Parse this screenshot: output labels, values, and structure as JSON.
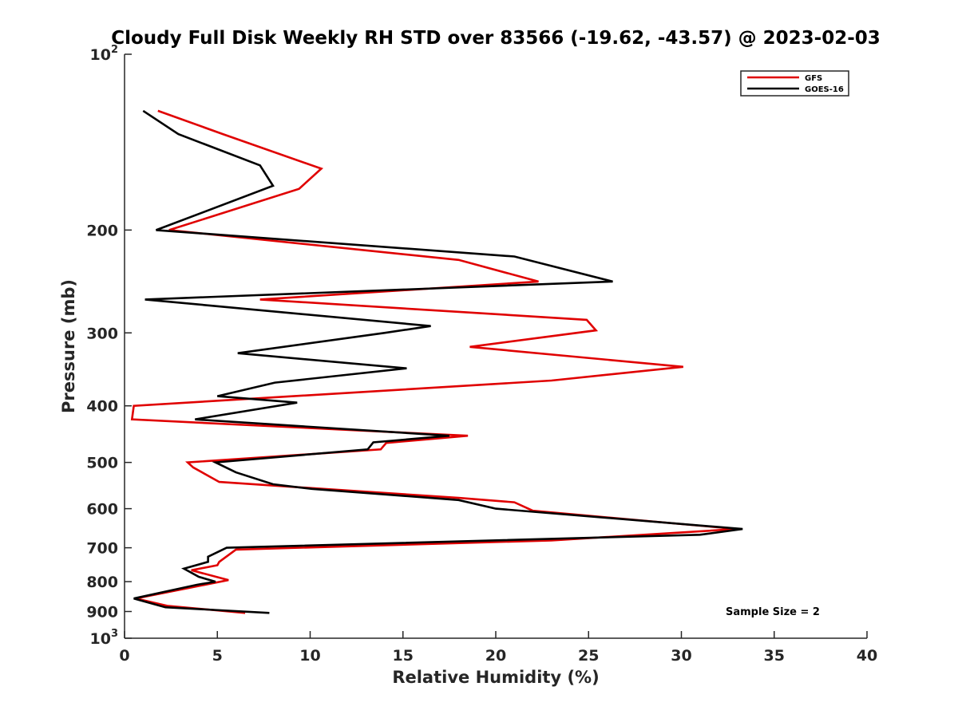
{
  "chart_data": {
    "type": "line",
    "title": "Cloudy Full Disk Weekly RH STD over 83566 (-19.62, -43.57) @ 2023-02-03",
    "xlabel": "Relative Humidity (%)",
    "ylabel": "Pressure (mb)",
    "xlim": [
      0,
      40
    ],
    "ylim": [
      100,
      1000
    ],
    "y_scale": "log",
    "y_reversed": true,
    "grid": false,
    "legend_position": "top-right",
    "x_ticks": [
      "0",
      "5",
      "10",
      "15",
      "20",
      "25",
      "30",
      "35",
      "40"
    ],
    "y_ticks": [
      {
        "value": 100,
        "base": "10",
        "exp": "2"
      },
      {
        "value": 200,
        "label": "200"
      },
      {
        "value": 300,
        "label": "300"
      },
      {
        "value": 400,
        "label": "400"
      },
      {
        "value": 500,
        "label": "500"
      },
      {
        "value": 600,
        "label": "600"
      },
      {
        "value": 700,
        "label": "700"
      },
      {
        "value": 800,
        "label": "800"
      },
      {
        "value": 900,
        "label": "900"
      },
      {
        "value": 1000,
        "base": "10",
        "exp": "3"
      }
    ],
    "annotation": "Sample Size = 2",
    "series": [
      {
        "name": "GFS",
        "color": "#e00000",
        "points": [
          [
            1.8,
            125
          ],
          [
            5.3,
            137
          ],
          [
            10.6,
            157
          ],
          [
            9.4,
            170
          ],
          [
            2.4,
            200
          ],
          [
            18.0,
            225
          ],
          [
            22.3,
            245
          ],
          [
            7.3,
            263
          ],
          [
            24.9,
            285
          ],
          [
            25.4,
            297
          ],
          [
            18.6,
            317
          ],
          [
            30.1,
            343
          ],
          [
            23.0,
            362
          ],
          [
            0.5,
            400
          ],
          [
            0.4,
            422
          ],
          [
            18.5,
            450
          ],
          [
            14.1,
            463
          ],
          [
            13.8,
            475
          ],
          [
            3.4,
            500
          ],
          [
            3.7,
            510
          ],
          [
            5.1,
            540
          ],
          [
            18.0,
            575
          ],
          [
            21.0,
            585
          ],
          [
            22.0,
            605
          ],
          [
            33.0,
            650
          ],
          [
            23.0,
            680
          ],
          [
            6.0,
            705
          ],
          [
            5.1,
            740
          ],
          [
            5.0,
            750
          ],
          [
            3.6,
            765
          ],
          [
            5.6,
            795
          ],
          [
            0.6,
            855
          ],
          [
            2.3,
            880
          ],
          [
            6.5,
            905
          ]
        ]
      },
      {
        "name": "GOES-16",
        "color": "#000000",
        "points": [
          [
            1.0,
            125
          ],
          [
            2.9,
            137
          ],
          [
            7.3,
            155
          ],
          [
            8.0,
            168
          ],
          [
            1.7,
            200
          ],
          [
            21.0,
            222
          ],
          [
            26.3,
            245
          ],
          [
            1.1,
            263
          ],
          [
            16.5,
            292
          ],
          [
            14.0,
            300
          ],
          [
            6.1,
            325
          ],
          [
            15.2,
            345
          ],
          [
            8.1,
            365
          ],
          [
            5.0,
            385
          ],
          [
            9.3,
            395
          ],
          [
            3.8,
            422
          ],
          [
            17.5,
            450
          ],
          [
            13.4,
            462
          ],
          [
            13.1,
            475
          ],
          [
            4.9,
            500
          ],
          [
            6.0,
            520
          ],
          [
            8.0,
            545
          ],
          [
            10.1,
            555
          ],
          [
            18.0,
            580
          ],
          [
            20.0,
            600
          ],
          [
            33.3,
            650
          ],
          [
            31.0,
            665
          ],
          [
            5.5,
            700
          ],
          [
            4.5,
            725
          ],
          [
            4.5,
            740
          ],
          [
            3.2,
            760
          ],
          [
            4.0,
            785
          ],
          [
            4.9,
            800
          ],
          [
            3.9,
            810
          ],
          [
            0.5,
            855
          ],
          [
            2.2,
            885
          ],
          [
            7.8,
            905
          ]
        ]
      }
    ]
  }
}
